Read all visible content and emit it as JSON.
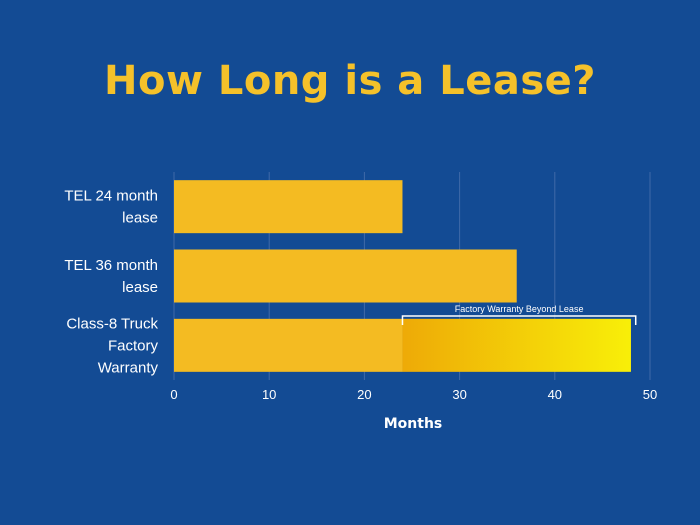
{
  "title": "How Long is a Lease?",
  "colors": {
    "background": "#134b94",
    "title": "#f5c12a",
    "bar": "#f4bb22",
    "warranty_start": "#eeaa07",
    "warranty_end": "#f8ef08",
    "grid": "#3f6aa8",
    "text": "#ffffff"
  },
  "chart_data": {
    "type": "bar",
    "orientation": "horizontal",
    "categories": [
      [
        "TEL 24 month",
        "lease"
      ],
      [
        "TEL 36 month",
        "lease"
      ],
      [
        "Class-8 Truck",
        "Factory",
        "Warranty"
      ]
    ],
    "values": [
      24,
      36,
      48
    ],
    "highlight": {
      "category_index": 2,
      "from": 24,
      "to": 48
    },
    "annotation": {
      "text": "Factory Warranty Beyond Lease",
      "from": 24,
      "to": 48.5
    },
    "xlabel": "Months",
    "ylabel": "",
    "xlim": [
      0,
      50
    ],
    "xticks": [
      0,
      10,
      20,
      30,
      40,
      50
    ],
    "grid": true
  }
}
